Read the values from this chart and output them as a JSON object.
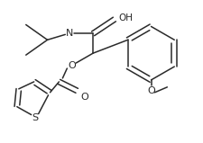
{
  "bg_color": "#ffffff",
  "line_color": "#2a2a2a",
  "line_width": 1.1,
  "figsize": [
    2.25,
    1.59
  ],
  "dpi": 100,
  "xlim": [
    0,
    225
  ],
  "ylim": [
    0,
    159
  ]
}
